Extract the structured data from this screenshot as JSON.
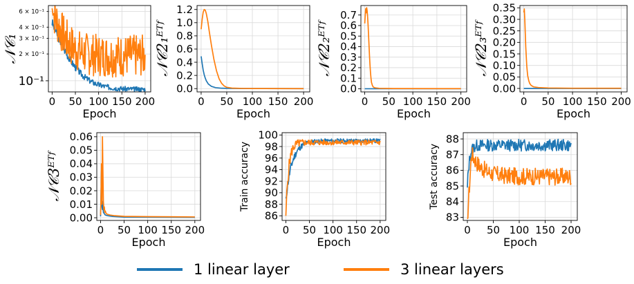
{
  "colors": {
    "one": "#1f77b4",
    "three": "#ff7f0e"
  },
  "legend": {
    "placement": "bottom-center",
    "items": [
      {
        "label": "1 linear layer",
        "color": "#1f77b4"
      },
      {
        "label": "3 linear layers",
        "color": "#ff7f0e"
      }
    ]
  },
  "chart_data": [
    {
      "id": "nc1",
      "type": "line",
      "xlabel": "Epoch",
      "ylabel": "𝒩𝒞₁",
      "yscale": "log",
      "xlim": [
        -8,
        212
      ],
      "ylim": [
        0.075,
        0.7
      ],
      "xticks": [
        0,
        50,
        100,
        150,
        200
      ],
      "yticks": [
        {
          "v": 0.1,
          "label": "10⁻¹",
          "major": true
        },
        {
          "v": 0.2,
          "label": "2 × 10⁻¹",
          "major": false
        },
        {
          "v": 0.3,
          "label": "3 × 10⁻¹",
          "major": false
        },
        {
          "v": 0.4,
          "label": "4 × 10⁻¹",
          "major": false
        },
        {
          "v": 0.6,
          "label": "6 × 10⁻¹",
          "major": false
        }
      ],
      "grid": true,
      "series": [
        {
          "key": "one",
          "shape": "decay_noisy",
          "start": 0.45,
          "end": 0.08,
          "tau": 28,
          "noise": 0.12,
          "seed": 3
        },
        {
          "key": "three",
          "shape": "osc",
          "start": 0.65,
          "center": 0.19,
          "amp": 0.14,
          "tau": 20,
          "seed": 7
        }
      ]
    },
    {
      "id": "nc21",
      "type": "line",
      "xlabel": "Epoch",
      "ylabel": "𝒩𝒞2₁ᴱᵀᶠ",
      "xlim": [
        -8,
        212
      ],
      "ylim": [
        -0.05,
        1.26
      ],
      "xticks": [
        0,
        50,
        100,
        150,
        200
      ],
      "yticks": [
        0.0,
        0.2,
        0.4,
        0.6,
        0.8,
        1.0,
        1.2
      ],
      "grid": true,
      "series": [
        {
          "key": "one",
          "points": [
            [
              0,
              0.49
            ],
            [
              2,
              0.38
            ],
            [
              4,
              0.28
            ],
            [
              6,
              0.21
            ],
            [
              8,
              0.16
            ],
            [
              10,
              0.12
            ],
            [
              14,
              0.07
            ],
            [
              20,
              0.035
            ],
            [
              28,
              0.015
            ],
            [
              40,
              0.006
            ],
            [
              60,
              0.002
            ],
            [
              100,
              0.001
            ],
            [
              200,
              0.0
            ]
          ]
        },
        {
          "key": "three",
          "points": [
            [
              0,
              0.9
            ],
            [
              2,
              1.05
            ],
            [
              4,
              1.16
            ],
            [
              6,
              1.2
            ],
            [
              8,
              1.19
            ],
            [
              10,
              1.14
            ],
            [
              13,
              1.02
            ],
            [
              16,
              0.86
            ],
            [
              20,
              0.66
            ],
            [
              25,
              0.44
            ],
            [
              30,
              0.27
            ],
            [
              35,
              0.15
            ],
            [
              40,
              0.08
            ],
            [
              45,
              0.04
            ],
            [
              50,
              0.02
            ],
            [
              60,
              0.008
            ],
            [
              80,
              0.003
            ],
            [
              100,
              0.001
            ],
            [
              200,
              0.0
            ]
          ]
        }
      ]
    },
    {
      "id": "nc22",
      "type": "line",
      "xlabel": "Epoch",
      "ylabel": "𝒩𝒞2₂ᴱᵀᶠ",
      "xlim": [
        -8,
        212
      ],
      "ylim": [
        -0.03,
        0.79
      ],
      "xticks": [
        0,
        50,
        100,
        150,
        200
      ],
      "yticks": [
        0.0,
        0.1,
        0.2,
        0.3,
        0.4,
        0.5,
        0.6,
        0.7
      ],
      "grid": true,
      "series": [
        {
          "key": "one",
          "points": [
            [
              0,
              0.0
            ],
            [
              200,
              0.0
            ]
          ]
        },
        {
          "key": "three",
          "points": [
            [
              0,
              0.62
            ],
            [
              1,
              0.7
            ],
            [
              2,
              0.76
            ],
            [
              3,
              0.72
            ],
            [
              4,
              0.77
            ],
            [
              5,
              0.74
            ],
            [
              6,
              0.68
            ],
            [
              7,
              0.6
            ],
            [
              8,
              0.5
            ],
            [
              9,
              0.4
            ],
            [
              10,
              0.3
            ],
            [
              11,
              0.22
            ],
            [
              12,
              0.15
            ],
            [
              13,
              0.1
            ],
            [
              14,
              0.06
            ],
            [
              16,
              0.03
            ],
            [
              18,
              0.015
            ],
            [
              22,
              0.008
            ],
            [
              30,
              0.004
            ],
            [
              60,
              0.002
            ],
            [
              200,
              0.001
            ]
          ]
        }
      ]
    },
    {
      "id": "nc23",
      "type": "line",
      "xlabel": "Epoch",
      "ylabel": "𝒩𝒞2₃ᴱᵀᶠ",
      "xlim": [
        -8,
        212
      ],
      "ylim": [
        -0.015,
        0.36
      ],
      "xticks": [
        0,
        50,
        100,
        150,
        200
      ],
      "yticks": [
        0.0,
        0.05,
        0.1,
        0.15,
        0.2,
        0.25,
        0.3,
        0.35
      ],
      "grid": true,
      "series": [
        {
          "key": "one",
          "points": [
            [
              0,
              0.0
            ],
            [
              200,
              0.0
            ]
          ]
        },
        {
          "key": "three",
          "points": [
            [
              0,
              0.33
            ],
            [
              1,
              0.345
            ],
            [
              2,
              0.3
            ],
            [
              3,
              0.24
            ],
            [
              4,
              0.18
            ],
            [
              5,
              0.14
            ],
            [
              6,
              0.1
            ],
            [
              7,
              0.075
            ],
            [
              8,
              0.055
            ],
            [
              10,
              0.035
            ],
            [
              12,
              0.022
            ],
            [
              15,
              0.013
            ],
            [
              20,
              0.007
            ],
            [
              30,
              0.004
            ],
            [
              50,
              0.002
            ],
            [
              100,
              0.001
            ],
            [
              200,
              0.001
            ]
          ]
        }
      ]
    },
    {
      "id": "nc3",
      "type": "line",
      "xlabel": "Epoch",
      "ylabel": "𝒩𝒞3ᴱᵀᶠ",
      "xlim": [
        -8,
        212
      ],
      "ylim": [
        -0.002,
        0.063
      ],
      "xticks": [
        0,
        50,
        100,
        150,
        200
      ],
      "yticks": [
        0.0,
        0.01,
        0.02,
        0.03,
        0.04,
        0.05,
        0.06
      ],
      "grid": true,
      "series": [
        {
          "key": "one",
          "points": [
            [
              0,
              0.001
            ],
            [
              2,
              0.035
            ],
            [
              3,
              0.008
            ],
            [
              4,
              0.006
            ],
            [
              5,
              0.012
            ],
            [
              6,
              0.004
            ],
            [
              8,
              0.003
            ],
            [
              10,
              0.002
            ],
            [
              15,
              0.0015
            ],
            [
              25,
              0.001
            ],
            [
              50,
              0.0005
            ],
            [
              200,
              0.0003
            ]
          ]
        },
        {
          "key": "three",
          "points": [
            [
              0,
              0.002
            ],
            [
              1,
              0.015
            ],
            [
              2,
              0.04
            ],
            [
              3,
              0.01
            ],
            [
              4,
              0.06
            ],
            [
              5,
              0.035
            ],
            [
              6,
              0.012
            ],
            [
              7,
              0.006
            ],
            [
              8,
              0.008
            ],
            [
              9,
              0.004
            ],
            [
              10,
              0.005
            ],
            [
              12,
              0.003
            ],
            [
              15,
              0.0025
            ],
            [
              20,
              0.002
            ],
            [
              30,
              0.0015
            ],
            [
              50,
              0.001
            ],
            [
              100,
              0.0008
            ],
            [
              200,
              0.0006
            ]
          ]
        }
      ]
    },
    {
      "id": "train",
      "type": "line",
      "xlabel": "Epoch",
      "ylabel": "Train accuracy",
      "xlim": [
        -8,
        212
      ],
      "ylim": [
        85.2,
        100.4
      ],
      "xticks": [
        0,
        50,
        100,
        150,
        200
      ],
      "yticks": [
        86,
        88,
        90,
        92,
        94,
        96,
        98,
        100
      ],
      "grid": true,
      "series": [
        {
          "key": "one",
          "shape": "rise_noisy",
          "start": 89.0,
          "end": 99.0,
          "tau": 14,
          "noise": 0.35,
          "seed": 11
        },
        {
          "key": "three",
          "shape": "rise_noisy",
          "start": 86.0,
          "end": 98.7,
          "tau": 6,
          "noise": 0.45,
          "seed": 5
        }
      ]
    },
    {
      "id": "test",
      "type": "line",
      "xlabel": "Epoch",
      "ylabel": "Test accuracy",
      "xlim": [
        -8,
        212
      ],
      "ylim": [
        82.8,
        88.4
      ],
      "xticks": [
        0,
        50,
        100,
        150,
        200
      ],
      "yticks": [
        83,
        84,
        85,
        86,
        87,
        88
      ],
      "grid": true,
      "series": [
        {
          "key": "one",
          "shape": "plateau_noisy",
          "start": 84.9,
          "level": 87.6,
          "tau": 4,
          "noise": 0.38,
          "seed": 13
        },
        {
          "key": "three",
          "shape": "peak_noisy",
          "start": 82.9,
          "peak": 87.1,
          "level": 85.6,
          "tau": 20,
          "noise": 0.55,
          "seed": 17
        }
      ]
    }
  ]
}
